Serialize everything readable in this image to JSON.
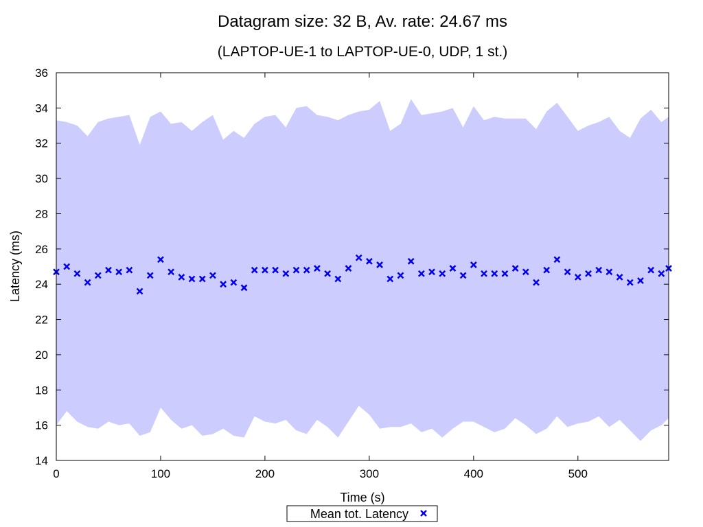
{
  "chart_data": {
    "type": "scatter",
    "title": "Datagram size: 32 B, Av. rate: 24.67 ms",
    "subtitle": "(LAPTOP-UE-1 to LAPTOP-UE-0, UDP, 1 st.)",
    "xlabel": "Time (s)",
    "ylabel": "Latency (ms)",
    "xlim": [
      0,
      587
    ],
    "ylim": [
      14,
      36
    ],
    "x_ticks": [
      0,
      100,
      200,
      300,
      400,
      500
    ],
    "y_ticks": [
      14,
      16,
      18,
      20,
      22,
      24,
      26,
      28,
      30,
      32,
      34,
      36
    ],
    "grid": false,
    "legend_position": "bottom-center",
    "colors": {
      "band": "#ccccff",
      "marker": "#0000ee"
    },
    "x": [
      0,
      10,
      20,
      30,
      40,
      50,
      60,
      70,
      80,
      90,
      100,
      110,
      120,
      130,
      140,
      150,
      160,
      170,
      180,
      190,
      200,
      210,
      220,
      230,
      240,
      250,
      260,
      270,
      280,
      290,
      300,
      310,
      320,
      330,
      340,
      350,
      360,
      370,
      380,
      390,
      400,
      410,
      420,
      430,
      440,
      450,
      460,
      470,
      480,
      490,
      500,
      510,
      520,
      530,
      540,
      550,
      560,
      570,
      580,
      587
    ],
    "series": [
      {
        "name": "Mean tot. Latency",
        "marker": "x",
        "values": [
          24.7,
          25.0,
          24.6,
          24.1,
          24.5,
          24.8,
          24.7,
          24.8,
          23.6,
          24.5,
          25.4,
          24.7,
          24.4,
          24.3,
          24.3,
          24.5,
          24.0,
          24.1,
          23.8,
          24.8,
          24.8,
          24.8,
          24.6,
          24.8,
          24.8,
          24.9,
          24.6,
          24.3,
          24.9,
          25.5,
          25.3,
          25.1,
          24.3,
          24.5,
          25.3,
          24.6,
          24.7,
          24.6,
          24.9,
          24.5,
          25.1,
          24.6,
          24.6,
          24.6,
          24.9,
          24.7,
          24.1,
          24.8,
          25.4,
          24.7,
          24.4,
          24.6,
          24.8,
          24.7,
          24.4,
          24.1,
          24.2,
          24.8,
          24.6,
          24.9
        ]
      }
    ],
    "band_upper": [
      33.3,
      33.2,
      33.0,
      32.4,
      33.2,
      33.4,
      33.5,
      33.6,
      31.9,
      33.5,
      33.8,
      33.1,
      33.2,
      32.7,
      33.2,
      33.6,
      32.2,
      32.7,
      32.3,
      33.1,
      33.5,
      33.6,
      32.9,
      34.0,
      34.1,
      33.6,
      33.5,
      33.3,
      33.6,
      33.8,
      33.9,
      34.4,
      32.7,
      33.1,
      34.5,
      33.6,
      33.7,
      33.8,
      34.0,
      32.9,
      34.1,
      33.3,
      33.5,
      33.4,
      33.4,
      33.4,
      32.8,
      33.8,
      34.3,
      33.5,
      32.7,
      33.0,
      33.2,
      33.5,
      32.7,
      32.3,
      33.4,
      33.9,
      33.2,
      33.5
    ],
    "band_lower": [
      16.0,
      16.8,
      16.2,
      15.9,
      15.8,
      16.2,
      16.0,
      16.1,
      15.4,
      15.6,
      17.0,
      16.3,
      15.8,
      16.0,
      15.4,
      15.5,
      15.8,
      15.4,
      15.3,
      16.5,
      16.2,
      16.1,
      16.3,
      15.7,
      15.5,
      16.3,
      15.9,
      15.3,
      16.2,
      17.1,
      16.6,
      15.8,
      15.9,
      15.9,
      16.1,
      15.6,
      15.8,
      15.3,
      15.8,
      16.2,
      16.2,
      15.9,
      15.6,
      15.8,
      16.4,
      16.0,
      15.5,
      15.8,
      16.5,
      15.9,
      16.1,
      16.2,
      16.5,
      15.9,
      16.3,
      15.7,
      15.1,
      15.7,
      16.0,
      16.4
    ]
  }
}
